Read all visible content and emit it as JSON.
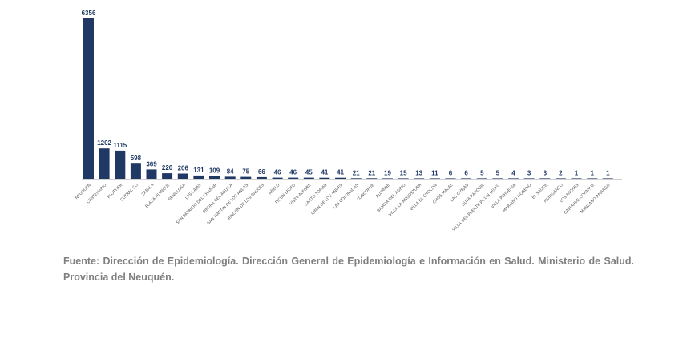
{
  "chart_data": {
    "type": "bar",
    "title": "",
    "xlabel": "",
    "ylabel": "",
    "ylim": [
      0,
      6356
    ],
    "grid": false,
    "legend": "none",
    "categories": [
      "NEUQUEN",
      "CENTENARIO",
      "PLOTTIER",
      "CUTRAL CO",
      "ZAPALA",
      "PLAZA HUINCUL",
      "SENILLOSA",
      "LAS LAJAS",
      "SAN PATRICIO DEL CHAÑAR",
      "PIEDRA DEL AGUILA",
      "SAN MARTIN DE LOS ANDES",
      "RINCON DE LOS SAUCES",
      "AÑELO",
      "PICUN LEUFU",
      "VISTA ALEGRE",
      "SANTO TOMAS",
      "JUNIN DE LOS ANDES",
      "LAS COLORADAS",
      "LONCOPUE",
      "ALUMINE",
      "BAJADA DEL AGRIO",
      "VILLA LA ANGOSTURA",
      "VILLA EL CHOCON",
      "CHOS MALAL",
      "LAS OVEJAS",
      "BUTA RANQUIL",
      "VILLA DEL PUENTE PICUN LEUFU",
      "VILLA PEHUENIA",
      "MARIANO MORENO",
      "EL SAUCE",
      "HUINGANCO",
      "LOS MICHES",
      "CAVIAHUE-COPAHUE",
      "MANZANO AMARGO"
    ],
    "values": [
      6356,
      1202,
      1115,
      598,
      369,
      220,
      206,
      131,
      109,
      84,
      75,
      66,
      46,
      46,
      45,
      41,
      41,
      21,
      21,
      19,
      15,
      13,
      11,
      6,
      6,
      5,
      5,
      4,
      3,
      3,
      2,
      1,
      1,
      1
    ]
  },
  "source_note": "Fuente: Dirección de Epidemiología. Dirección General de Epidemiología e Información en Salud. Ministerio de Salud. Provincia del Neuquén."
}
